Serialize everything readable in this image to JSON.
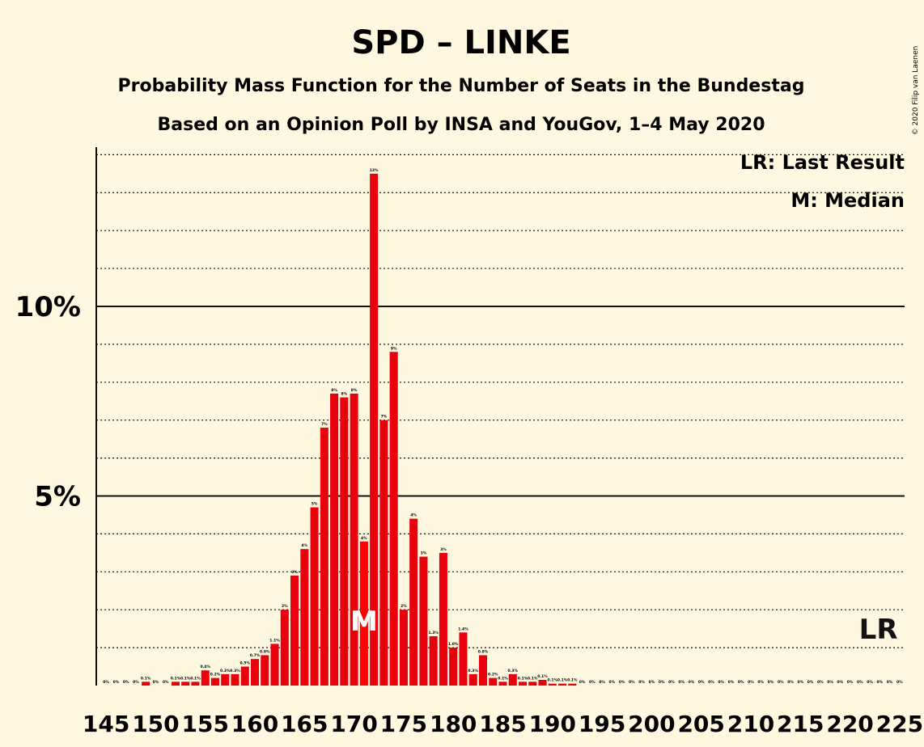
{
  "chart_data": {
    "type": "bar",
    "title": "SPD – LINKE",
    "subtitle": "Probability Mass Function for the Number of Seats in the Bundestag",
    "subtitle2": "Based on an Opinion Poll by INSA and YouGov, 1–4 May 2020",
    "copyright": "© 2020 Filip van Laenen",
    "legend": {
      "lr": "LR: Last Result",
      "median": "M: Median"
    },
    "x_start": 145,
    "x_end": 225,
    "x_tick_step": 5,
    "x_tick_labels": [
      "145",
      "150",
      "155",
      "160",
      "165",
      "170",
      "175",
      "180",
      "185",
      "190",
      "195",
      "200",
      "205",
      "210",
      "215",
      "220",
      "225"
    ],
    "y_ticks": [
      5,
      10
    ],
    "y_tick_labels": [
      "5%",
      "10%"
    ],
    "ylim": [
      0,
      14.2
    ],
    "median_seat": 171,
    "median_label": "M",
    "last_result_seat": 224,
    "last_result_label": "LR",
    "values": [
      0,
      0,
      0,
      0,
      0.1,
      0,
      0,
      0.1,
      0.1,
      0.1,
      0.4,
      0.2,
      0.3,
      0.3,
      0.5,
      0.7,
      0.8,
      1.1,
      2.0,
      2.9,
      3.6,
      4.7,
      6.8,
      7.7,
      7.6,
      7.7,
      3.8,
      13.5,
      7.0,
      8.8,
      2.0,
      4.4,
      3.4,
      1.3,
      3.5,
      1.0,
      1.4,
      0.3,
      0.8,
      0.2,
      0.1,
      0.3,
      0.1,
      0.1,
      0.15,
      0.05,
      0.05,
      0.05,
      0,
      0,
      0,
      0,
      0,
      0,
      0,
      0,
      0,
      0,
      0,
      0,
      0,
      0,
      0,
      0,
      0,
      0,
      0,
      0,
      0,
      0,
      0,
      0,
      0,
      0,
      0,
      0,
      0,
      0,
      0,
      0,
      0
    ],
    "data_labels": [
      "0%",
      "0%",
      "0%",
      "0%",
      "0.1%",
      "0%",
      "0%",
      "0.1%",
      "0.1%",
      "0.1%",
      "0.4%",
      "0.2%",
      "0.3%",
      "0.3%",
      "0.5%",
      "0.7%",
      "0.8%",
      "1.1%",
      "2%",
      "3%",
      "4%",
      "5%",
      "7%",
      "8%",
      "8%",
      "8%",
      "4%",
      "13%",
      "7%",
      "9%",
      "2%",
      "4%",
      "3%",
      "1.3%",
      "3%",
      "1.0%",
      "1.4%",
      "0.3%",
      "0.8%",
      "0.2%",
      "0.1%",
      "0.3%",
      "0.1%",
      "0.1%",
      "0.1%",
      "0.1%",
      "0.1%",
      "0.1%",
      "0%",
      "0%",
      "0%",
      "0%",
      "0%",
      "0%",
      "0%",
      "0%",
      "0%",
      "0%",
      "0%",
      "0%",
      "0%",
      "0%",
      "0%",
      "0%",
      "0%",
      "0%",
      "0%",
      "0%",
      "0%",
      "0%",
      "0%",
      "0%",
      "0%",
      "0%",
      "0%",
      "0%",
      "0%",
      "0%",
      "0%",
      "0%",
      "0%"
    ],
    "colors": {
      "bar": "#e8000d",
      "bar_median": "#ff0000",
      "background": "#fff8e1",
      "text": "#111111"
    }
  }
}
